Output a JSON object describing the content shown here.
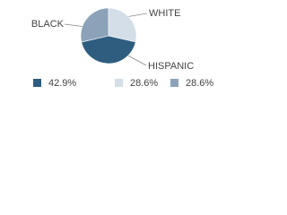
{
  "chart_data": {
    "type": "pie",
    "categories": [
      "HISPANIC",
      "WHITE",
      "BLACK"
    ],
    "values": [
      42.9,
      28.6,
      28.6
    ],
    "value_labels": [
      "42.9%",
      "28.6%",
      "28.6%"
    ],
    "colors": [
      "#2f5d80",
      "#d3dee8",
      "#8ba2b9"
    ]
  }
}
